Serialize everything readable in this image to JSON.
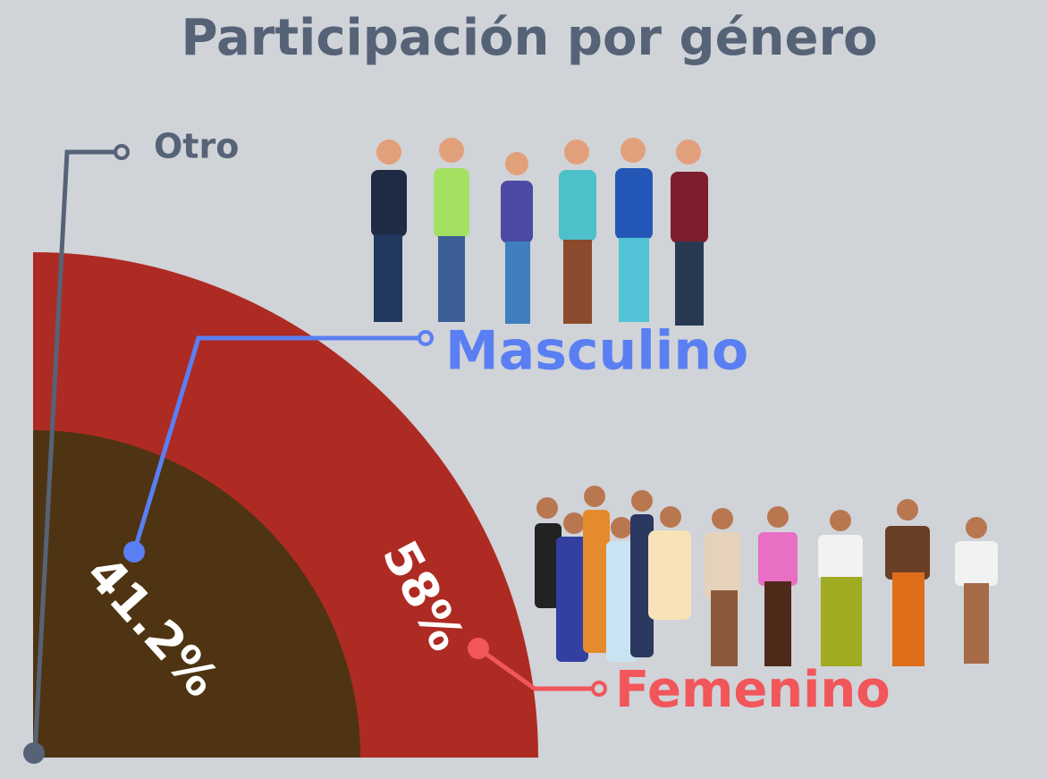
{
  "chart_data": {
    "type": "radial-stack",
    "title": "Participación por género",
    "categories": [
      "Otro",
      "Masculino",
      "Femenino"
    ],
    "values": [
      0.8,
      41.2,
      58
    ],
    "value_labels": [
      null,
      "41.2%",
      "58%"
    ],
    "colors": [
      "#566377",
      "#4e3412",
      "#ad2b23"
    ],
    "label_colors": [
      "#566377",
      "#5a7ff2",
      "#f1565a"
    ]
  }
}
